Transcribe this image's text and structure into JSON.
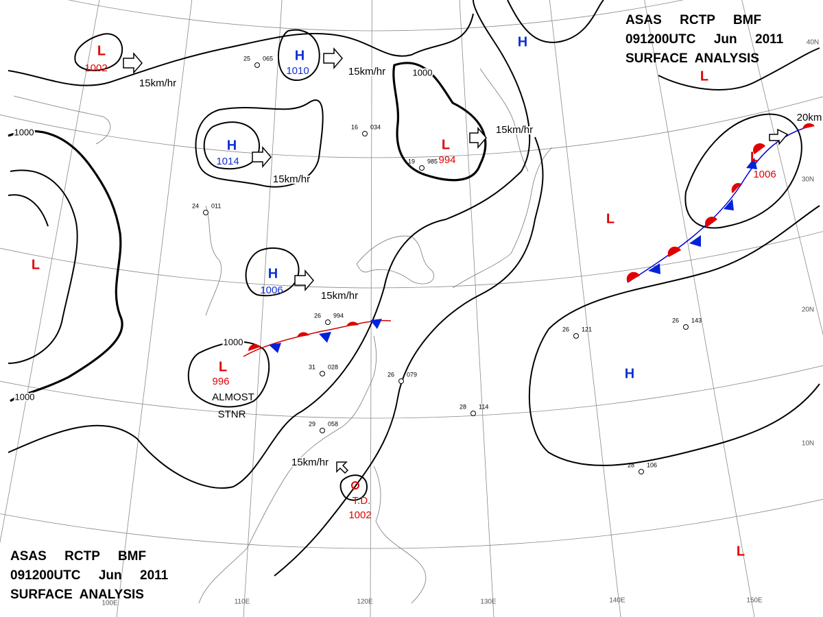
{
  "header": {
    "lines": [
      "ASAS     RCTP     BMF",
      "091200UTC     Jun     2011",
      "SURFACE  ANALYSIS"
    ]
  },
  "pressure_centers": [
    {
      "symbol": "L",
      "value": "1002"
    },
    {
      "symbol": "H",
      "value": "1010"
    },
    {
      "symbol": "H",
      "value": "1014"
    },
    {
      "symbol": "L",
      "value": "994"
    },
    {
      "symbol": "H"
    },
    {
      "symbol": "L"
    },
    {
      "symbol": "L",
      "value": "1006"
    },
    {
      "symbol": "L"
    },
    {
      "symbol": "L"
    },
    {
      "symbol": "H",
      "value": "1006"
    },
    {
      "symbol": "L",
      "value": "996"
    },
    {
      "symbol": "H"
    },
    {
      "symbol": "L"
    }
  ],
  "tropical_depression": {
    "label": "T.D.",
    "value": "1002"
  },
  "isobar_labels": [
    "1000",
    "1000",
    "1000",
    "1000"
  ],
  "motion_labels": [
    "15km/hr",
    "15km/hr",
    "15km/hr",
    "15km/hr",
    "15km/hr",
    "15km/hr",
    "20km"
  ],
  "notes": [
    "ALMOST",
    "STNR"
  ],
  "latitude_labels": [
    "40N",
    "30N",
    "20N",
    "10N"
  ],
  "longitude_labels": [
    "100E",
    "110E",
    "120E",
    "130E",
    "140E",
    "150E"
  ],
  "stations": [
    {
      "temp": "25",
      "pressure": "065"
    },
    {
      "temp": "16",
      "pressure": "034"
    },
    {
      "temp": "19",
      "pressure": "985"
    },
    {
      "temp": "26",
      "pressure": "994"
    },
    {
      "temp": "31",
      "pressure": "028"
    },
    {
      "temp": "29",
      "pressure": "058"
    },
    {
      "temp": "26",
      "pressure": "079"
    },
    {
      "temp": "28",
      "pressure": "114"
    },
    {
      "temp": "26",
      "pressure": "143"
    },
    {
      "temp": "26",
      "pressure": "121"
    },
    {
      "temp": "28",
      "pressure": "106"
    },
    {
      "temp": "24",
      "pressure": "011"
    }
  ]
}
